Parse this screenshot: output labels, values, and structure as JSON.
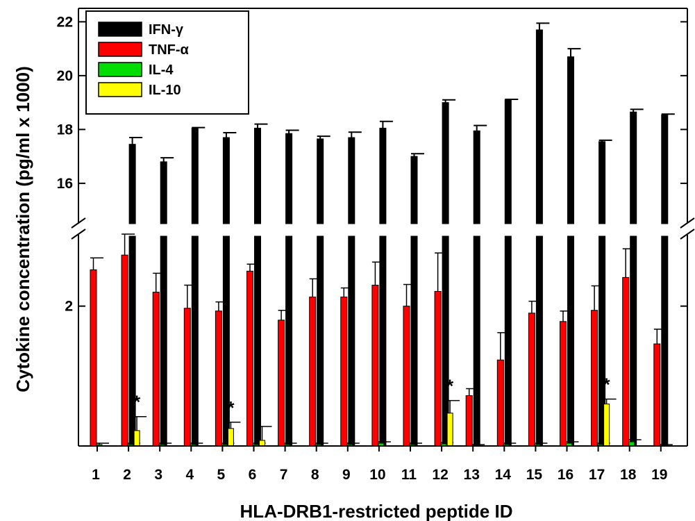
{
  "chart_data": {
    "type": "bar",
    "xlabel": "HLA-DRB1-restricted peptide ID",
    "ylabel": "Cytokine concentration (pg/ml x 1000)",
    "categories": [
      "1",
      "2",
      "3",
      "4",
      "5",
      "6",
      "7",
      "8",
      "9",
      "10",
      "11",
      "12",
      "13",
      "14",
      "15",
      "16",
      "17",
      "18",
      "19"
    ],
    "y_axis": {
      "broken": true,
      "lower_segment": {
        "range": [
          0,
          3.0
        ],
        "ticks": [
          2
        ],
        "tick_labels": [
          "2"
        ]
      },
      "upper_segment": {
        "range": [
          14.5,
          22.5
        ],
        "ticks": [
          16,
          18,
          20,
          22
        ],
        "tick_labels": [
          "16",
          "18",
          "20",
          "22"
        ]
      }
    },
    "legend": {
      "position": "top-left"
    },
    "series": [
      {
        "name": "IFN-γ",
        "legend_label": "IFN-γ",
        "color": "#000000",
        "values": [
          null,
          17.45,
          16.8,
          18.05,
          17.7,
          18.05,
          17.85,
          17.65,
          17.7,
          18.05,
          17.0,
          19.0,
          17.95,
          19.1,
          21.7,
          20.7,
          17.55,
          18.65,
          18.55
        ],
        "errors": [
          null,
          0.25,
          0.15,
          0.02,
          0.18,
          0.15,
          0.12,
          0.1,
          0.2,
          0.25,
          0.1,
          0.1,
          0.2,
          0.02,
          0.25,
          0.3,
          0.05,
          0.1,
          0.02
        ]
      },
      {
        "name": "TNF-α",
        "legend_label": "TNF-α",
        "color": "#ff0000",
        "values": [
          2.52,
          2.73,
          2.2,
          1.97,
          1.93,
          2.5,
          1.8,
          2.13,
          2.13,
          2.3,
          2.0,
          2.21,
          0.72,
          1.23,
          1.9,
          1.78,
          1.94,
          2.41,
          1.46
        ],
        "errors": [
          0.17,
          0.3,
          0.27,
          0.33,
          0.13,
          0.1,
          0.14,
          0.26,
          0.13,
          0.33,
          0.31,
          0.55,
          0.1,
          0.39,
          0.17,
          0.15,
          0.35,
          0.41,
          0.21
        ]
      },
      {
        "name": "IL-4",
        "legend_label": "IL-4",
        "color": "#00dd00",
        "values": [
          0.02,
          0.02,
          0.02,
          0.02,
          0.02,
          0.02,
          0.02,
          0.02,
          0.02,
          0.04,
          0.02,
          0.03,
          0.01,
          0.02,
          0.02,
          0.04,
          0.02,
          0.06,
          0.01
        ],
        "errors": [
          0.02,
          0.02,
          0.02,
          0.02,
          0.02,
          0.02,
          0.02,
          0.02,
          0.02,
          0.02,
          0.02,
          0.02,
          0.01,
          0.02,
          0.02,
          0.02,
          0.02,
          0.03,
          0.01
        ]
      },
      {
        "name": "IL-10",
        "legend_label": "IL-10",
        "color": "#ffff00",
        "values": [
          0,
          0.22,
          0,
          0,
          0.25,
          0.08,
          0,
          0,
          0,
          0,
          0,
          0.47,
          0,
          0,
          0,
          0,
          0.6,
          0,
          0
        ],
        "errors": [
          0,
          0.2,
          0,
          0,
          0.09,
          0.2,
          0,
          0,
          0,
          0,
          0,
          0.18,
          0,
          0,
          0,
          0,
          0.07,
          0,
          0
        ]
      }
    ],
    "annotations": [
      {
        "text": "*",
        "category": "2"
      },
      {
        "text": "*",
        "category": "5"
      },
      {
        "text": "*",
        "category": "12"
      },
      {
        "text": "*",
        "category": "17"
      }
    ]
  }
}
